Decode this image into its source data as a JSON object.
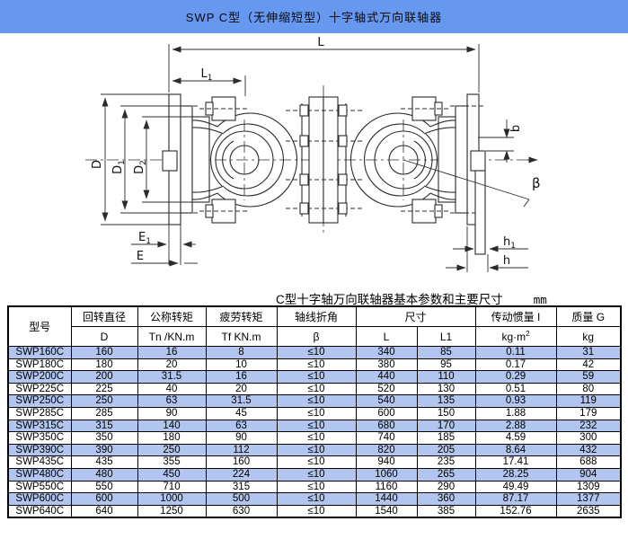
{
  "title_bar": {
    "text": "SWP C型（无伸缩短型）十字轴式万向联轴器",
    "bg_color": "#6598ee"
  },
  "drawing": {
    "labels": {
      "L": "L",
      "L1": {
        "base": "L",
        "sub": "1"
      },
      "D": "D",
      "D1": {
        "base": "D",
        "sub": "1"
      },
      "D2": {
        "base": "D",
        "sub": "2"
      },
      "E1": {
        "base": "E",
        "sub": "1"
      },
      "E": "E",
      "b": "b",
      "beta": "β",
      "h1": {
        "base": "h",
        "sub": "1"
      },
      "h": "h"
    }
  },
  "table": {
    "caption": "C型十字轴万向联轴器基本参数和主要尺寸",
    "caption_unit": "mm",
    "row_highlight_color": "#b1c5ef",
    "header": {
      "model": "型号",
      "d_top": "回转直径",
      "d_sub": "D",
      "tn_top": "公称转矩",
      "tn_sub": "Tn /KN.m",
      "tf_top": "疲劳转矩",
      "tf_sub": "Tf KN.m",
      "beta_top": "轴线折角",
      "beta_sub": "β",
      "size_top": "尺寸",
      "size_l": "L",
      "size_l1": "L1",
      "inertia_top": "传动惯量 I",
      "inertia_unit": "kg·m",
      "inertia_sup": "2",
      "mass_top": "质量 G",
      "mass_sub": "kg"
    },
    "rows": [
      [
        "SWP160C",
        "160",
        "16",
        "8",
        "≤10",
        "340",
        "85",
        "0.11",
        "31"
      ],
      [
        "SWP180C",
        "180",
        "20",
        "10",
        "≤10",
        "380",
        "95",
        "0.17",
        "42"
      ],
      [
        "SWP200C",
        "200",
        "31.5",
        "16",
        "≤10",
        "440",
        "110",
        "0.29",
        "59"
      ],
      [
        "SWP225C",
        "225",
        "40",
        "20",
        "≤10",
        "520",
        "130",
        "0.51",
        "80"
      ],
      [
        "SWP250C",
        "250",
        "63",
        "31.5",
        "≤10",
        "540",
        "135",
        "0.93",
        "119"
      ],
      [
        "SWP285C",
        "285",
        "90",
        "45",
        "≤10",
        "600",
        "150",
        "1.88",
        "179"
      ],
      [
        "SWP315C",
        "315",
        "140",
        "63",
        "≤10",
        "680",
        "170",
        "2.88",
        "232"
      ],
      [
        "SWP350C",
        "350",
        "180",
        "90",
        "≤10",
        "740",
        "185",
        "4.59",
        "300"
      ],
      [
        "SWP390C",
        "390",
        "250",
        "112",
        "≤10",
        "820",
        "205",
        "8.64",
        "432"
      ],
      [
        "SWP435C",
        "435",
        "355",
        "160",
        "≤10",
        "940",
        "235",
        "17.41",
        "688"
      ],
      [
        "SWP480C",
        "480",
        "450",
        "224",
        "≤10",
        "1060",
        "265",
        "28.25",
        "904"
      ],
      [
        "SWP550C",
        "550",
        "710",
        "315",
        "≤10",
        "1160",
        "290",
        "49.49",
        "1309"
      ],
      [
        "SWP600C",
        "600",
        "1000",
        "500",
        "≤10",
        "1440",
        "360",
        "87.17",
        "1377"
      ],
      [
        "SWP640C",
        "640",
        "1250",
        "630",
        "≤10",
        "1540",
        "385",
        "152.76",
        "2635"
      ]
    ]
  }
}
